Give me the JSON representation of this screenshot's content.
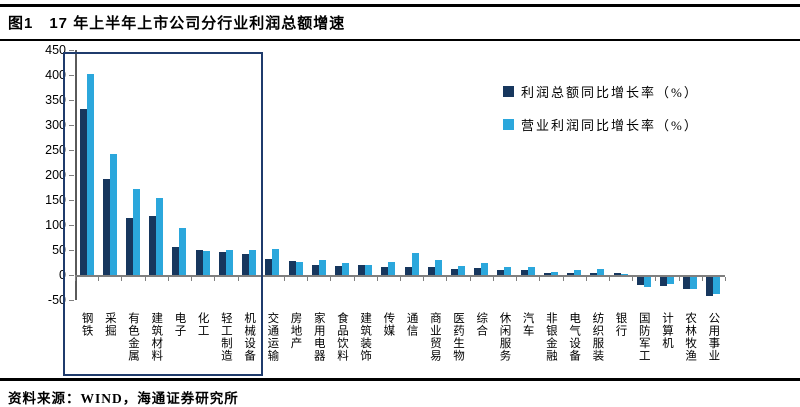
{
  "header": {
    "title": "图1　17 年上半年上市公司分行业利润总额增速"
  },
  "footer": {
    "source": "资料来源：WIND，海通证券研究所"
  },
  "chart_data": {
    "type": "bar",
    "title": "17 年上半年上市公司分行业利润总额增速",
    "categories": [
      "钢铁",
      "采掘",
      "有色金属",
      "建筑材料",
      "电子",
      "化工",
      "轻工制造",
      "机械设备",
      "交通运输",
      "房地产",
      "家用电器",
      "食品饮料",
      "建筑装饰",
      "传媒",
      "通信",
      "商业贸易",
      "医药生物",
      "综合",
      "休闲服务",
      "汽车",
      "非银金融",
      "电气设备",
      "纺织服装",
      "银行",
      "国防军工",
      "计算机",
      "农林牧渔",
      "公用事业"
    ],
    "series": [
      {
        "name": "利润总额同比增长率（%）",
        "color": "#17375E",
        "values": [
          333,
          193,
          115,
          118,
          57,
          50,
          47,
          43,
          33,
          28,
          20,
          19,
          21,
          17,
          16,
          16,
          13,
          15,
          11,
          10,
          5,
          5,
          4,
          5,
          -16,
          -18,
          -24,
          -38
        ]
      },
      {
        "name": "营业利润同比增长率（%）",
        "color": "#2BA7DC",
        "values": [
          402,
          242,
          172,
          155,
          95,
          48,
          50,
          50,
          53,
          27,
          31,
          25,
          20,
          26,
          45,
          30,
          18,
          25,
          16,
          17,
          7,
          11,
          13,
          3,
          -20,
          -14,
          -24,
          -34
        ]
      }
    ],
    "ylim": [
      -50,
      450
    ],
    "ytick_interval": 50,
    "grid": false,
    "legend_position": "top-right",
    "highlight_box": {
      "from_category": "钢铁",
      "to_category": "机械设备"
    },
    "colors": {
      "axis": "#7f7f7f",
      "highlight_border": "#1f3b6c",
      "text": "#000000"
    }
  }
}
